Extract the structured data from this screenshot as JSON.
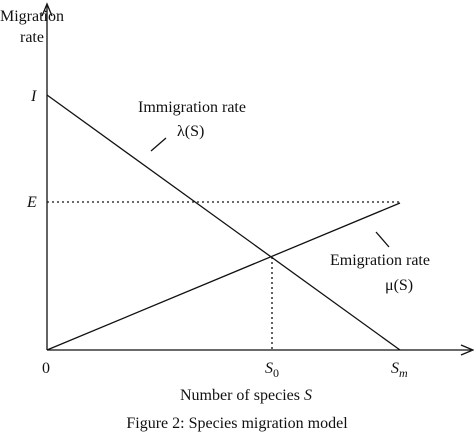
{
  "diagram": {
    "y_axis_label": [
      "Migration",
      "rate"
    ],
    "y_axis_marks": [
      "I",
      "E"
    ],
    "origin": "0",
    "x_axis_marks": [
      {
        "base": "S",
        "sub": "0"
      },
      {
        "base": "S",
        "sub": "m"
      }
    ],
    "x_axis_label": {
      "text": "Number of species",
      "variable": "S"
    },
    "curves": [
      {
        "name": "Immigration rate",
        "symbol": "λ(S)"
      },
      {
        "name": "Emigration rate",
        "symbol": "μ(S)"
      }
    ],
    "caption": "Figure 2: Species migration model"
  }
}
